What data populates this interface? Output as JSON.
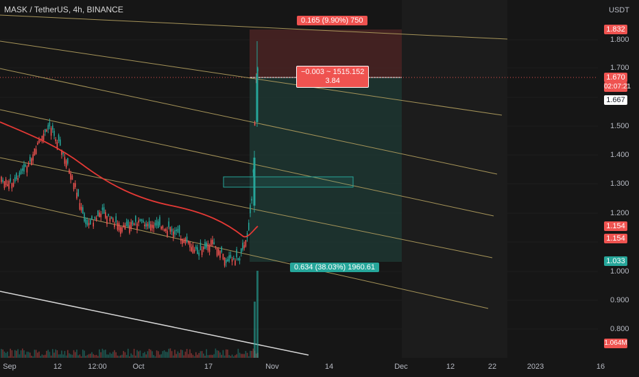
{
  "header": {
    "symbol": "MASK / TetherUS, 4h, BINANCE"
  },
  "price_scale": {
    "currency": "USDT",
    "ticks": [
      "1.800",
      "1.700",
      "1.500",
      "1.400",
      "1.300",
      "1.200",
      "1.000",
      "0.900",
      "0.800"
    ],
    "badges": {
      "target_price": "1.832",
      "last_price": "1.670",
      "countdown": "02:07:21",
      "crosshair_price": "1.667",
      "ma_value_1": "1.154",
      "ma_value_2": "1.154",
      "stop_price": "1.033",
      "volume": "1.064M"
    }
  },
  "time_axis": {
    "labels": [
      "Sep",
      "12",
      "12:00",
      "Oct",
      "17",
      "Nov",
      "14",
      "Dec",
      "12",
      "22",
      "2023",
      "16"
    ]
  },
  "position_tool": {
    "target_label": "0.165 (9.90%) 750",
    "entry_label_line1": "−0.003 ~ 1515.152",
    "entry_label_line2": "3.84",
    "stop_label": "0.634 (38.03%) 1960.61"
  },
  "colors": {
    "background": "#161616",
    "up": "#26a69a",
    "down": "#ef5350",
    "ma": "#e53935",
    "channel_gold": "#a8965a",
    "channel_white": "#d8d8d8",
    "profit_zone": "#1f3b35",
    "loss_zone": "#4a2323"
  }
}
